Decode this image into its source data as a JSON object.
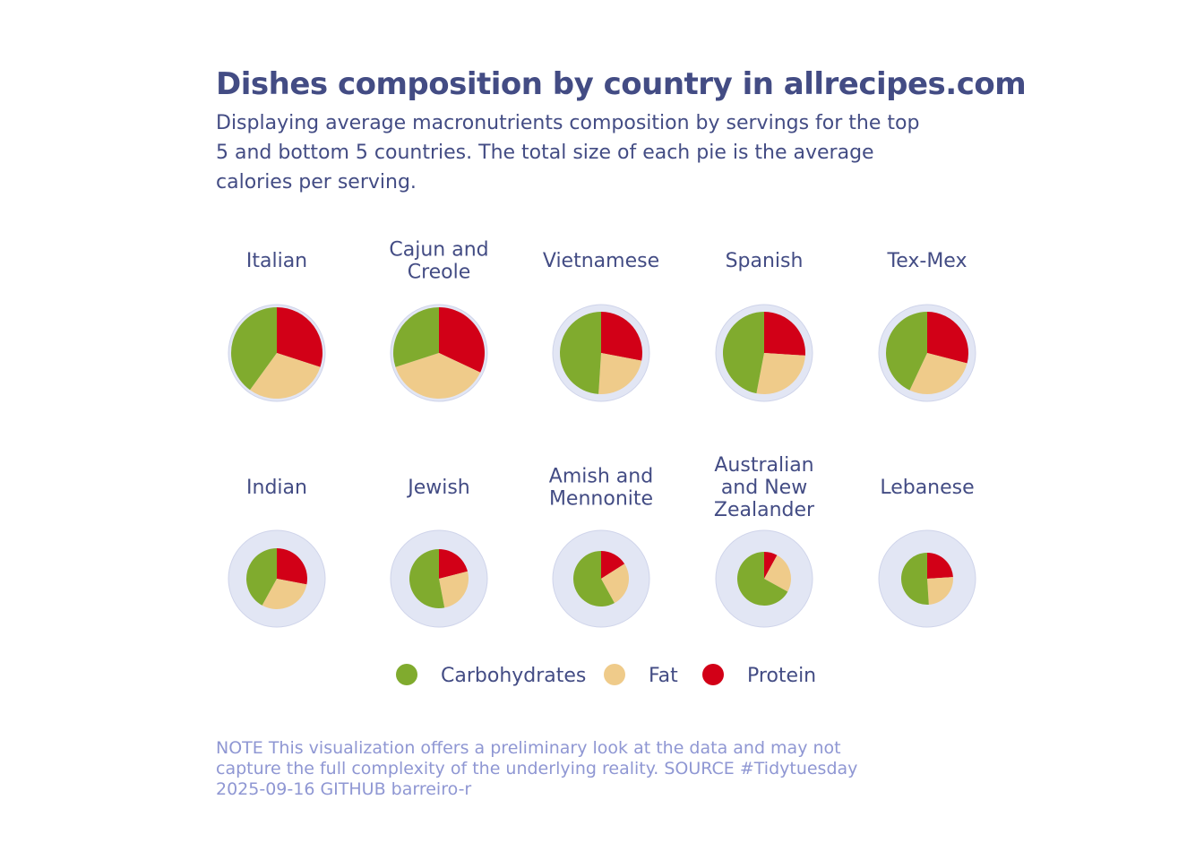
{
  "title": "Dishes composition by country in allrecipes.com",
  "subtitle": "Displaying average macronutrients composition by servings for the top 5 and bottom 5 countries. The total size of each pie is the average calories per serving.",
  "note": "NOTE This visualization offers a preliminary look at the data and may not capture the full complexity of the underlying reality. SOURCE #Tidytuesday 2025-09-16 GITHUB barreiro-r",
  "chart_data": {
    "type": "pie",
    "title": "Dishes composition by country in allrecipes.com",
    "legend": {
      "placement": "bottom",
      "entries": [
        "Carbohydrates",
        "Fat",
        "Protein"
      ]
    },
    "colors": {
      "Carbohydrates": "#80ab2e",
      "Fat": "#efcb8a",
      "Protein": "#d20017",
      "background": "#e2e6f4"
    },
    "max_calories": 540,
    "panels": [
      {
        "country": "Italian",
        "lines": [
          "Italian"
        ],
        "calories": 510,
        "protein": 30,
        "fat": 30,
        "carbohydrates": 40
      },
      {
        "country": "Cajun and Creole",
        "lines": [
          "Cajun and",
          "Creole"
        ],
        "calories": 510,
        "protein": 32,
        "fat": 38,
        "carbohydrates": 30
      },
      {
        "country": "Vietnamese",
        "lines": [
          "Vietnamese"
        ],
        "calories": 460,
        "protein": 28,
        "fat": 23,
        "carbohydrates": 49
      },
      {
        "country": "Spanish",
        "lines": [
          "Spanish"
        ],
        "calories": 460,
        "protein": 26,
        "fat": 27,
        "carbohydrates": 47
      },
      {
        "country": "Tex-Mex",
        "lines": [
          "Tex-Mex"
        ],
        "calories": 460,
        "protein": 29,
        "fat": 28,
        "carbohydrates": 43
      },
      {
        "country": "Indian",
        "lines": [
          "Indian"
        ],
        "calories": 340,
        "protein": 28,
        "fat": 30,
        "carbohydrates": 42
      },
      {
        "country": "Jewish",
        "lines": [
          "Jewish"
        ],
        "calories": 330,
        "protein": 21,
        "fat": 26,
        "carbohydrates": 53
      },
      {
        "country": "Amish and Mennonite",
        "lines": [
          "Amish and",
          "Mennonite"
        ],
        "calories": 310,
        "protein": 16,
        "fat": 26,
        "carbohydrates": 58
      },
      {
        "country": "Australian and New Zealander",
        "lines": [
          "Australian",
          "and New",
          "Zealander"
        ],
        "calories": 300,
        "protein": 8,
        "fat": 25,
        "carbohydrates": 67
      },
      {
        "country": "Lebanese",
        "lines": [
          "Lebanese"
        ],
        "calories": 290,
        "protein": 24,
        "fat": 25,
        "carbohydrates": 51
      }
    ]
  }
}
